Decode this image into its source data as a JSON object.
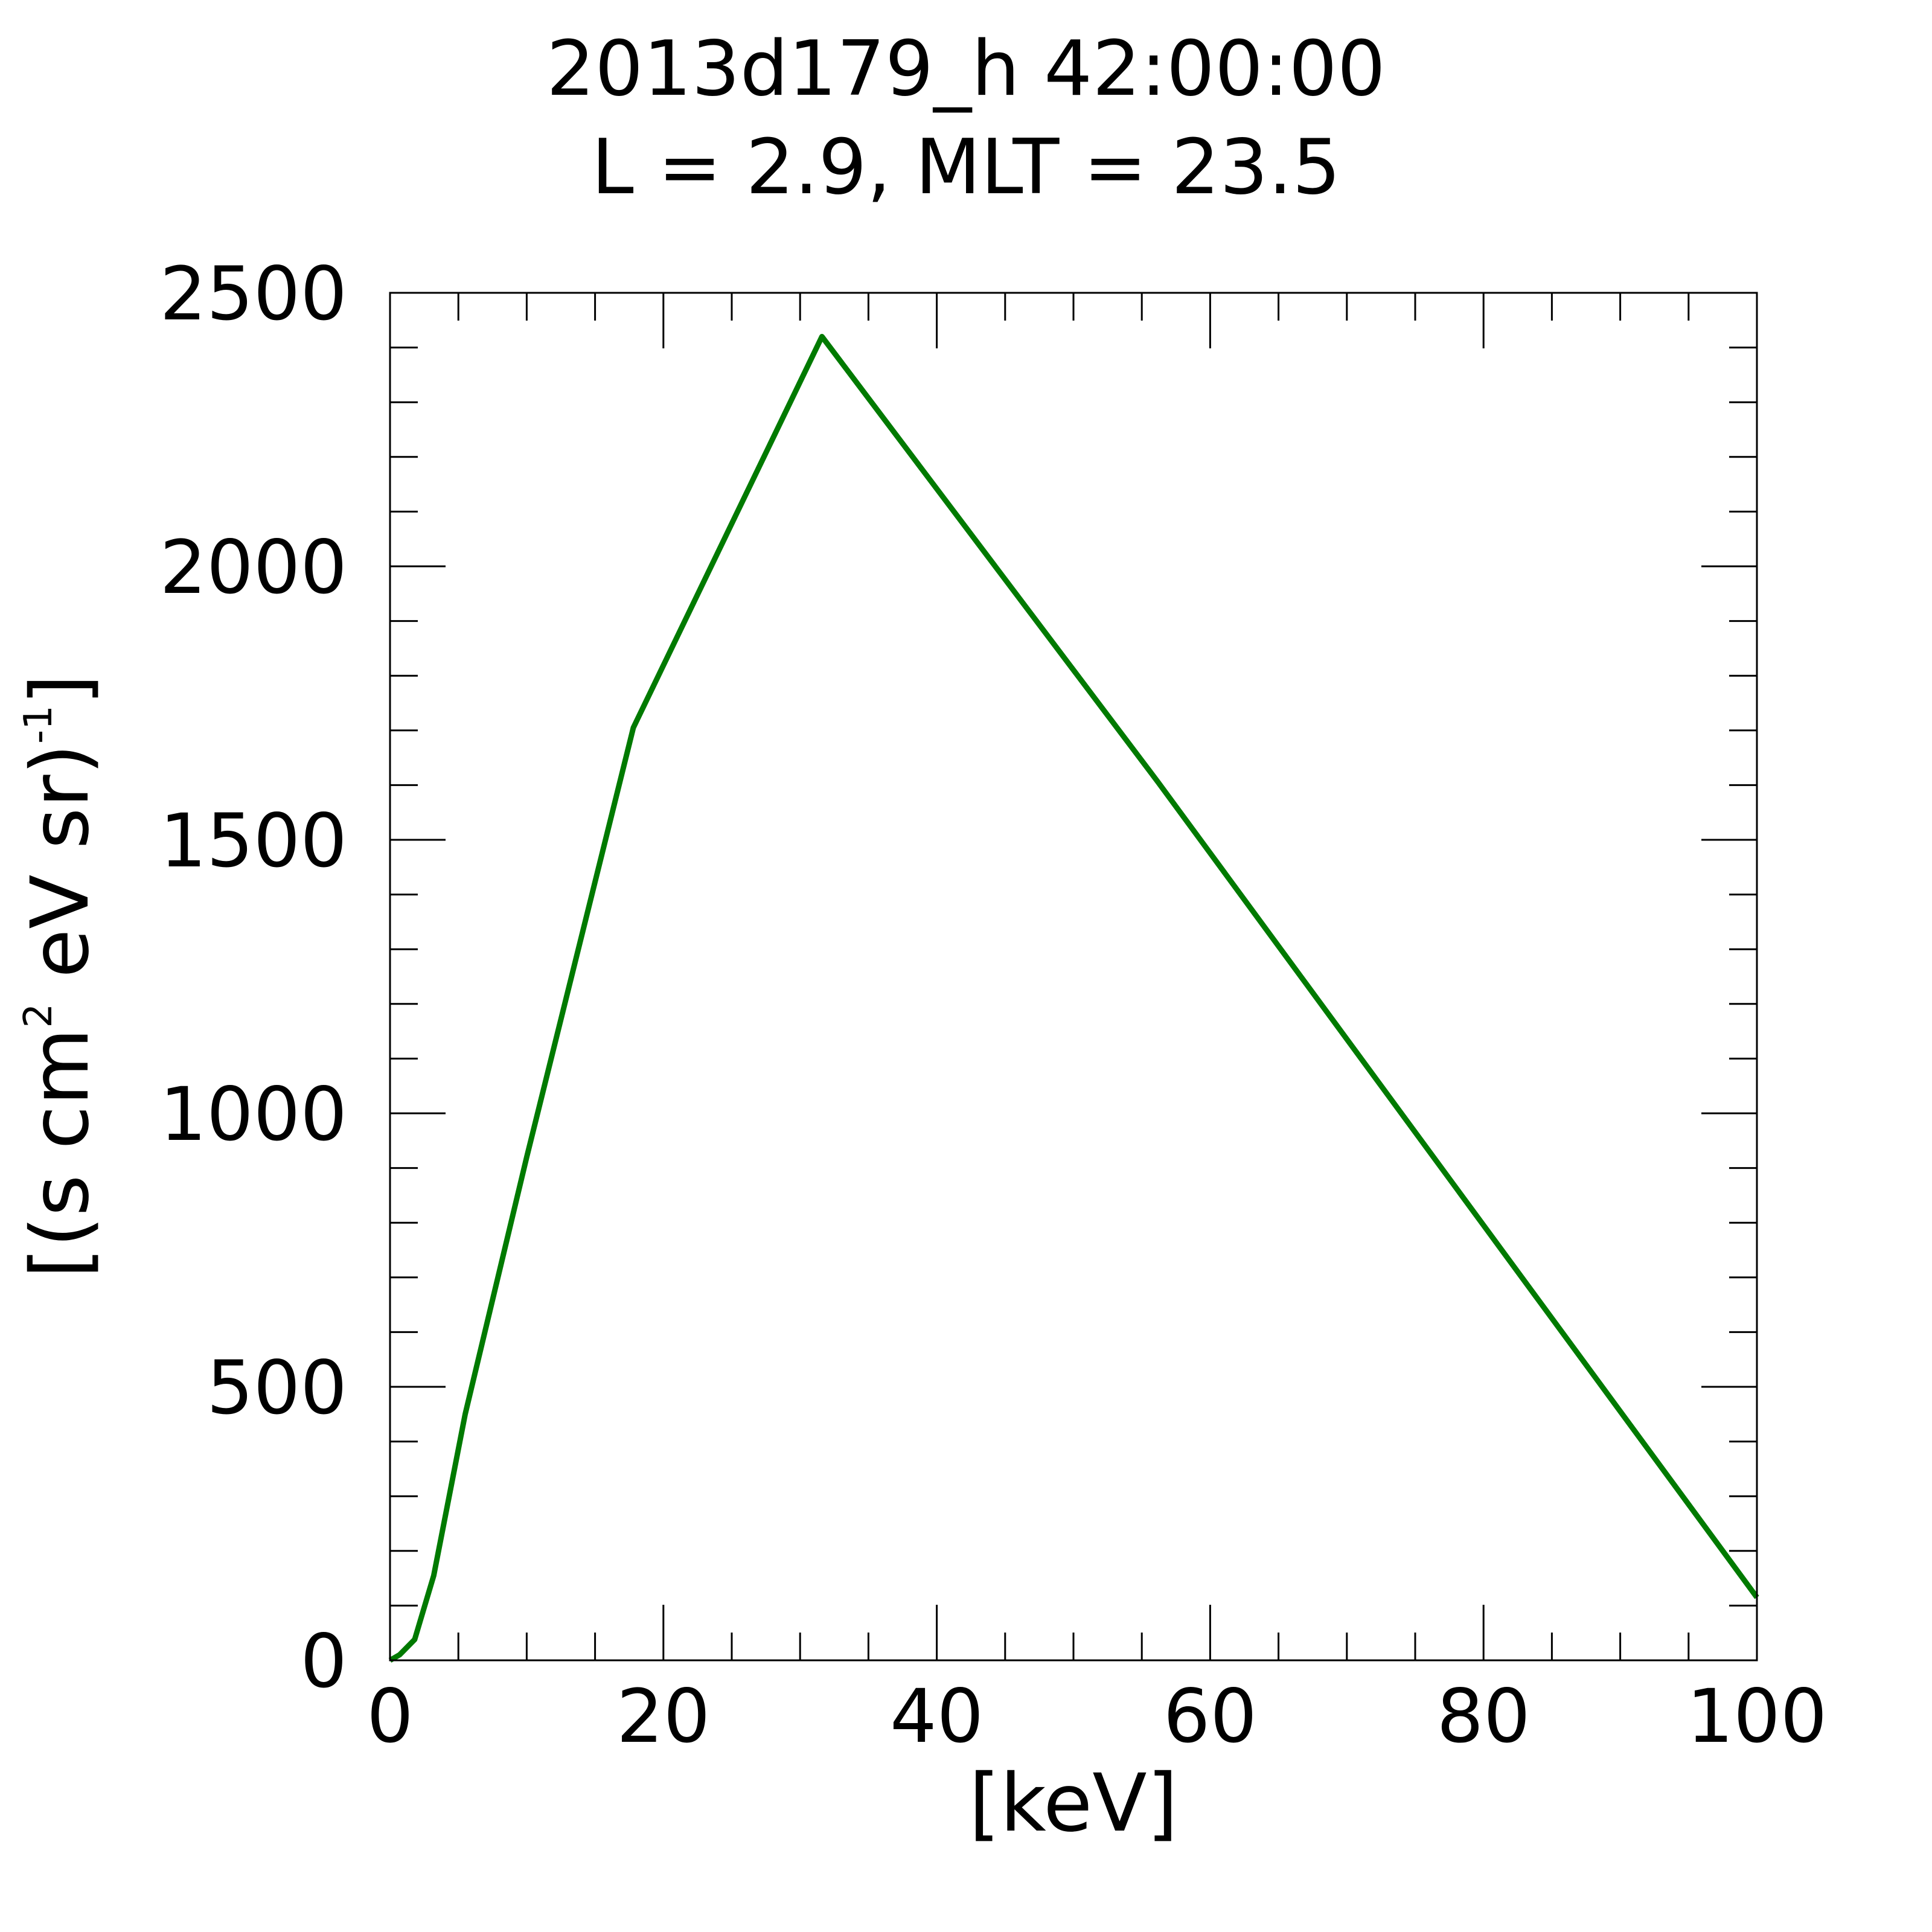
{
  "chart_data": {
    "type": "line",
    "title": "2013d179_h  42:00:00",
    "subtitle": "L = 2.9, MLT = 23.5",
    "xlabel": "[keV]",
    "ylabel": {
      "main": "[(s cm",
      "sup1": "2",
      "mid": " eV sr)",
      "sup2": "-1",
      "end": "]"
    },
    "xlim": [
      0,
      100
    ],
    "ylim": [
      0,
      2500
    ],
    "x_ticks": [
      0,
      20,
      40,
      60,
      80,
      100
    ],
    "y_ticks": [
      0,
      500,
      1000,
      1500,
      2000,
      2500
    ],
    "x_tick_labels": [
      "0",
      "20",
      "40",
      "60",
      "80",
      "100"
    ],
    "y_tick_labels": [
      "0",
      "500",
      "1000",
      "1500",
      "2000",
      "2500"
    ],
    "x_minor_step": 5,
    "y_minor_step": 100,
    "grid": false,
    "series": [
      {
        "color": "#007a00",
        "x": [
          0,
          0.7,
          1.8,
          3.2,
          5.5,
          10,
          17.8,
          31.6,
          56.2,
          100
        ],
        "y": [
          0,
          10,
          38,
          155,
          450,
          920,
          1705,
          2420,
          1605,
          115
        ]
      }
    ]
  }
}
